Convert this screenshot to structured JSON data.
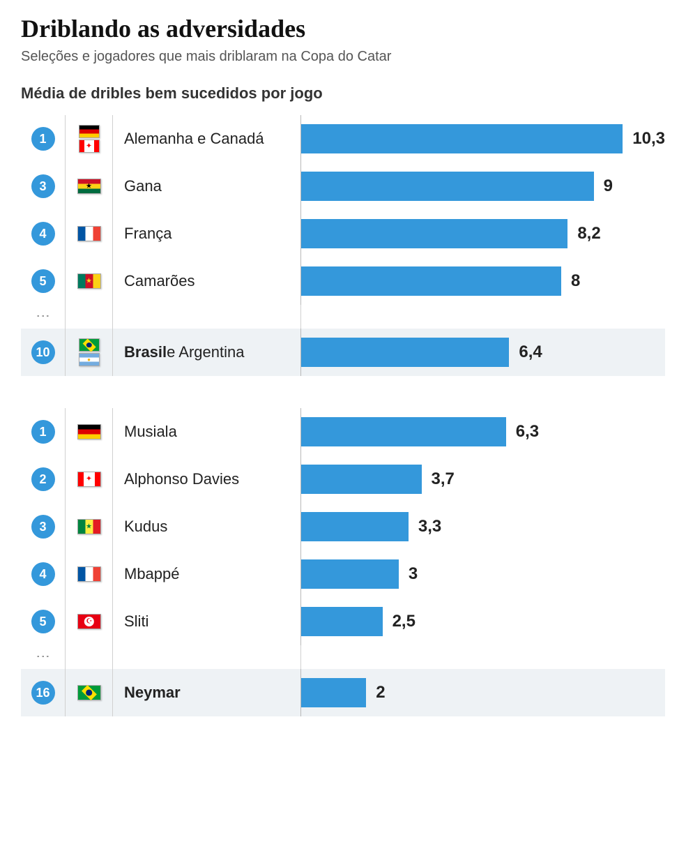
{
  "title": "Driblando as adversidades",
  "subtitle": "Seleções e jogadores que mais driblaram na Copa do Catar",
  "section_label": "Média de dribles bem sucedidos por jogo",
  "bar_color": "#3498db",
  "badge_color": "#3498db",
  "background_color": "#ffffff",
  "highlight_color": "#eef2f5",
  "grid_color": "#d0d0d0",
  "text_color": "#222222",
  "value_fontsize": 24,
  "label_fontsize": 22,
  "title_fontsize": 36,
  "teams": {
    "type": "bar",
    "max": 10.3,
    "rows": [
      {
        "rank": "1",
        "flags": [
          "germany",
          "canada"
        ],
        "label_html": "Alemanha e Canadá",
        "value": 10.3,
        "display": "10,3",
        "highlight": false
      },
      {
        "rank": "3",
        "flags": [
          "ghana"
        ],
        "label_html": "Gana",
        "value": 9,
        "display": "9",
        "highlight": false
      },
      {
        "rank": "4",
        "flags": [
          "france"
        ],
        "label_html": "França",
        "value": 8.2,
        "display": "8,2",
        "highlight": false
      },
      {
        "rank": "5",
        "flags": [
          "cameroon"
        ],
        "label_html": "Camarões",
        "value": 8,
        "display": "8",
        "highlight": false
      }
    ],
    "ellipsis_after": true,
    "tail": [
      {
        "rank": "10",
        "flags": [
          "brazil",
          "argentina"
        ],
        "label_html": "<b>Brasil</b> e Argentina",
        "value": 6.4,
        "display": "6,4",
        "highlight": true
      }
    ]
  },
  "players": {
    "type": "bar",
    "max": 10.3,
    "rows": [
      {
        "rank": "1",
        "flags": [
          "germany"
        ],
        "label_html": "Musiala",
        "value": 6.3,
        "display": "6,3",
        "highlight": false
      },
      {
        "rank": "2",
        "flags": [
          "canada"
        ],
        "label_html": "Alphonso Davies",
        "value": 3.7,
        "display": "3,7",
        "highlight": false
      },
      {
        "rank": "3",
        "flags": [
          "senegal"
        ],
        "label_html": "Kudus",
        "value": 3.3,
        "display": "3,3",
        "highlight": false
      },
      {
        "rank": "4",
        "flags": [
          "france"
        ],
        "label_html": "Mbappé",
        "value": 3,
        "display": "3",
        "highlight": false
      },
      {
        "rank": "5",
        "flags": [
          "tunisia"
        ],
        "label_html": "Sliti",
        "value": 2.5,
        "display": "2,5",
        "highlight": false
      }
    ],
    "ellipsis_after": true,
    "tail": [
      {
        "rank": "16",
        "flags": [
          "brazil"
        ],
        "label_html": "<b>Neymar</b>",
        "value": 2,
        "display": "2",
        "highlight": true
      }
    ]
  }
}
